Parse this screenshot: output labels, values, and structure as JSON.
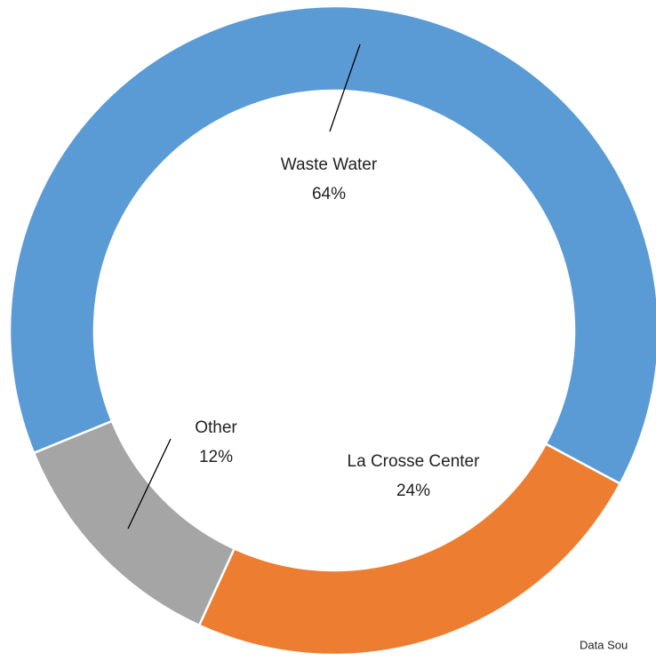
{
  "chart_data": {
    "type": "donut",
    "categories": [
      "Waste Water",
      "La Crosse Center",
      "Other"
    ],
    "values": [
      64,
      24,
      12
    ],
    "value_labels": [
      "64%",
      "24%",
      "12%"
    ],
    "colors": [
      "#5b9bd5",
      "#ed7d31",
      "#a5a5a5"
    ],
    "note": "Data Sou"
  }
}
